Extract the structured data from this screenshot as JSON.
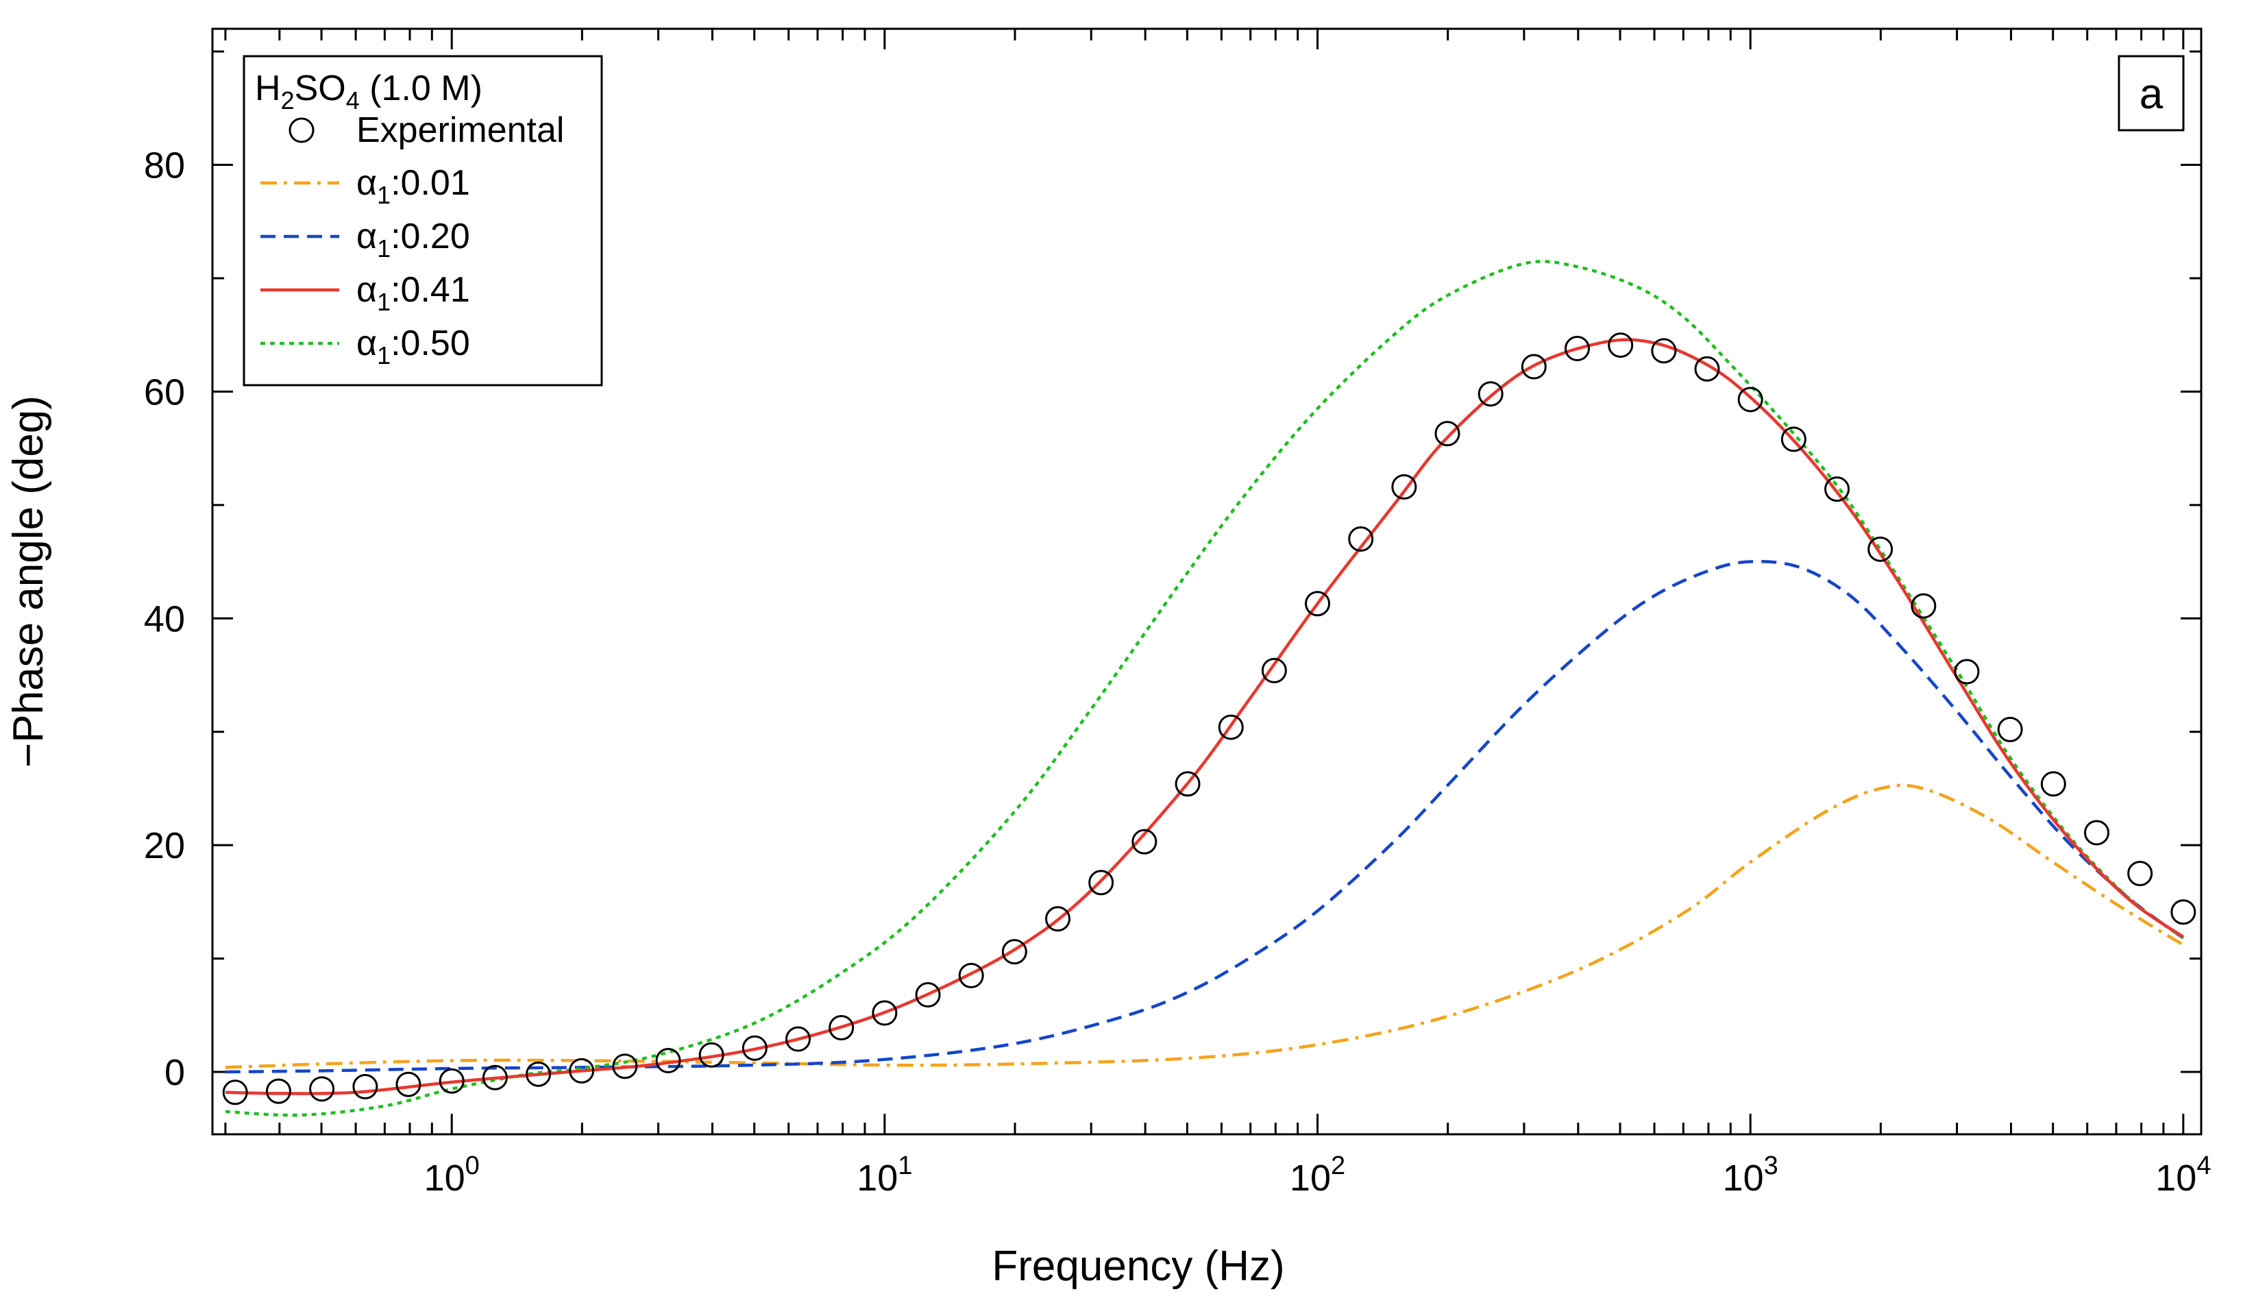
{
  "chart_data": {
    "type": "line",
    "panel_label": "a",
    "xlabel": "Frequency (Hz)",
    "ylabel": "−Phase angle (deg)",
    "xscale": "log",
    "xlim": [
      0.28,
      11000
    ],
    "ylim": [
      -5.5,
      92
    ],
    "x_ticks": [
      1,
      10,
      100,
      1000,
      10000
    ],
    "x_tick_labels": [
      "10^0",
      "10^1",
      "10^2",
      "10^3",
      "10^4"
    ],
    "y_ticks": [
      0,
      20,
      40,
      60,
      80
    ],
    "y_tick_labels": [
      "0",
      "20",
      "40",
      "60",
      "80"
    ],
    "grid": false,
    "legend": {
      "placement": "top-left",
      "title": "H2SO4 (1.0 M)"
    },
    "series": [
      {
        "name": "Experimental",
        "style": "markers",
        "marker": "open-circle",
        "color": "#000000",
        "x": [
          0.316,
          0.398,
          0.501,
          0.631,
          0.794,
          1.0,
          1.259,
          1.585,
          1.995,
          2.512,
          3.162,
          3.981,
          5.012,
          6.31,
          7.943,
          10.0,
          12.59,
          15.85,
          19.95,
          25.12,
          31.62,
          39.81,
          50.12,
          63.1,
          79.43,
          100.0,
          125.9,
          158.5,
          199.5,
          251.2,
          316.2,
          398.1,
          501.2,
          631.0,
          794.3,
          1000.0,
          1259.0,
          1585.0,
          1995.0,
          2512.0,
          3162.0,
          3981.0,
          5012.0,
          6310.0,
          7943.0,
          10000.0
        ],
        "y": [
          -1.8,
          -1.7,
          -1.5,
          -1.3,
          -1.1,
          -0.8,
          -0.5,
          -0.2,
          0.1,
          0.5,
          1.0,
          1.5,
          2.1,
          2.9,
          3.9,
          5.2,
          6.8,
          8.5,
          10.6,
          13.5,
          16.7,
          20.3,
          25.4,
          30.4,
          35.4,
          41.3,
          47.0,
          51.6,
          56.3,
          59.8,
          62.2,
          63.8,
          64.1,
          63.6,
          62.0,
          59.3,
          55.8,
          51.4,
          46.1,
          41.1,
          35.3,
          30.2,
          25.4,
          21.1,
          17.5,
          14.1
        ]
      },
      {
        "name": "α1:0.01",
        "style": "dash-dot",
        "color": "#f5a31a",
        "x": [
          0.3,
          0.5,
          1.0,
          2.0,
          5.0,
          10.0,
          20.0,
          50.0,
          100.0,
          200.0,
          400.0,
          700.0,
          1000.0,
          1500.0,
          2000.0,
          2500.0,
          3500.0,
          5000.0,
          7000.0,
          10000.0
        ],
        "y": [
          0.4,
          0.7,
          1.0,
          1.0,
          0.8,
          0.6,
          0.7,
          1.2,
          2.4,
          4.9,
          9.0,
          14.0,
          18.5,
          23.0,
          25.0,
          25.0,
          22.5,
          18.5,
          14.8,
          11.2
        ]
      },
      {
        "name": "α1:0.20",
        "style": "dashed",
        "color": "#1546c9",
        "x": [
          0.3,
          0.5,
          1.0,
          2.0,
          5.0,
          10.0,
          20.0,
          35.0,
          50.0,
          70.0,
          100.0,
          150.0,
          200.0,
          300.0,
          450.0,
          600.0,
          800.0,
          1000.0,
          1300.0,
          1700.0,
          2200.0,
          3000.0,
          4000.0,
          5500.0,
          7500.0,
          10000.0
        ],
        "y": [
          0.0,
          0.1,
          0.3,
          0.4,
          0.6,
          1.1,
          2.5,
          4.8,
          7.0,
          10.1,
          14.2,
          20.3,
          25.3,
          32.4,
          38.5,
          42.0,
          44.2,
          45.0,
          44.5,
          42.0,
          37.7,
          31.8,
          26.0,
          20.0,
          15.3,
          11.8
        ]
      },
      {
        "name": "α1:0.41",
        "style": "solid",
        "color": "#e8382f",
        "x": [
          0.3,
          0.4,
          0.6,
          1.0,
          1.5,
          2.0,
          3.0,
          5.0,
          8.0,
          12.0,
          20.0,
          30.0,
          50.0,
          70.0,
          100.0,
          150.0,
          200.0,
          300.0,
          450.0,
          600.0,
          800.0,
          1000.0,
          1300.0,
          1700.0,
          2200.0,
          3000.0,
          4000.0,
          5500.0,
          7500.0,
          10000.0
        ],
        "y": [
          -1.8,
          -1.9,
          -1.8,
          -0.9,
          -0.3,
          0.1,
          0.7,
          2.0,
          4.0,
          6.5,
          10.8,
          16.0,
          25.4,
          33.0,
          41.3,
          50.0,
          56.0,
          61.8,
          64.3,
          64.3,
          62.3,
          59.5,
          55.1,
          49.6,
          43.2,
          34.8,
          27.2,
          20.4,
          15.2,
          11.9
        ]
      },
      {
        "name": "α1:0.50",
        "style": "dotted",
        "color": "#1fbf1f",
        "x": [
          0.3,
          0.45,
          0.7,
          1.0,
          1.5,
          2.0,
          3.0,
          5.0,
          8.0,
          12.0,
          20.0,
          30.0,
          50.0,
          70.0,
          100.0,
          150.0,
          200.0,
          300.0,
          400.0,
          550.0,
          700.0,
          900.0,
          1200.0,
          1600.0,
          2000.0,
          3000.0,
          4000.0,
          5500.0,
          7500.0,
          10000.0
        ],
        "y": [
          -3.5,
          -3.8,
          -3.0,
          -1.5,
          -0.2,
          0.3,
          1.5,
          4.3,
          8.8,
          14.0,
          23.0,
          32.0,
          44.0,
          51.5,
          58.5,
          65.0,
          68.5,
          71.3,
          71.0,
          69.2,
          66.6,
          62.4,
          57.2,
          51.5,
          46.0,
          35.4,
          27.6,
          20.6,
          15.3,
          11.8
        ]
      }
    ]
  }
}
